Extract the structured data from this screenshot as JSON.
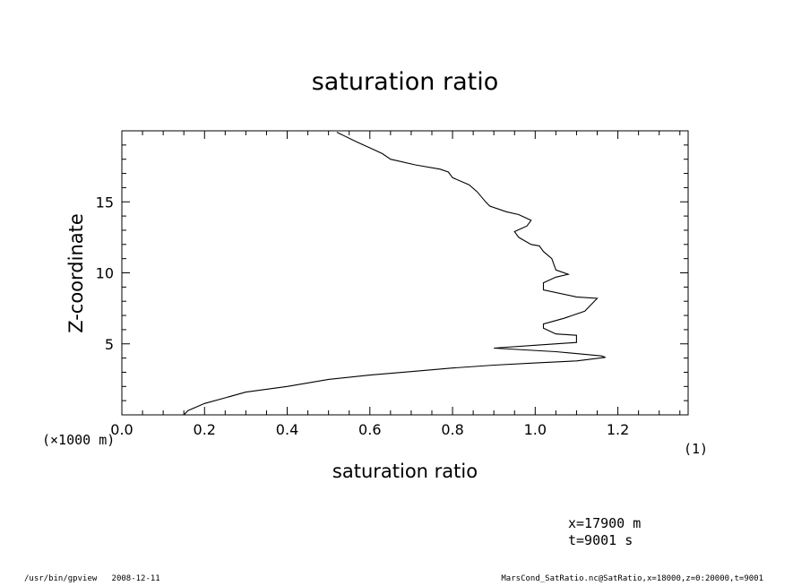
{
  "footer": {
    "left": "/usr/bin/gpview   2008-12-11",
    "right": "MarsCond_SatRatio.nc@SatRatio,x=18000,z=0:20000,t=9001"
  },
  "annotations": {
    "y_unit": "(×1000 m)",
    "x_unit": "(1)",
    "x_coord": "x=17900 m",
    "t_coord": "t=9001 s"
  },
  "chart_data": {
    "type": "line",
    "title": "saturation ratio",
    "xlabel": "saturation ratio",
    "ylabel": "Z-coordinate",
    "xlim": [
      0.0,
      1.37
    ],
    "ylim": [
      0,
      20
    ],
    "x_ticks": [
      0.0,
      0.2,
      0.4,
      0.6,
      0.8,
      1.0,
      1.2
    ],
    "x_tick_labels": [
      "0.0",
      "0.2",
      "0.4",
      "0.6",
      "0.8",
      "1.0",
      "1.2"
    ],
    "y_ticks": [
      5,
      10,
      15
    ],
    "y_tick_labels": [
      "5",
      "10",
      "15"
    ],
    "grid": false,
    "series": [
      {
        "points": [
          [
            0.15,
            0.0
          ],
          [
            0.16,
            0.3
          ],
          [
            0.2,
            0.8
          ],
          [
            0.25,
            1.2
          ],
          [
            0.3,
            1.6
          ],
          [
            0.4,
            2.0
          ],
          [
            0.5,
            2.5
          ],
          [
            0.6,
            2.8
          ],
          [
            0.7,
            3.05
          ],
          [
            0.8,
            3.3
          ],
          [
            0.9,
            3.5
          ],
          [
            1.0,
            3.65
          ],
          [
            1.1,
            3.8
          ],
          [
            1.17,
            4.05
          ],
          [
            1.16,
            4.15
          ],
          [
            1.05,
            4.45
          ],
          [
            0.9,
            4.7
          ],
          [
            1.0,
            4.9
          ],
          [
            1.1,
            5.1
          ],
          [
            1.1,
            5.6
          ],
          [
            1.05,
            5.7
          ],
          [
            1.02,
            6.1
          ],
          [
            1.02,
            6.4
          ],
          [
            1.07,
            6.8
          ],
          [
            1.12,
            7.3
          ],
          [
            1.15,
            8.2
          ],
          [
            1.1,
            8.3
          ],
          [
            1.02,
            8.8
          ],
          [
            1.02,
            9.3
          ],
          [
            1.05,
            9.7
          ],
          [
            1.08,
            9.9
          ],
          [
            1.05,
            10.2
          ],
          [
            1.04,
            11.0
          ],
          [
            1.02,
            11.5
          ],
          [
            1.01,
            11.9
          ],
          [
            0.99,
            12.0
          ],
          [
            0.96,
            12.5
          ],
          [
            0.95,
            12.9
          ],
          [
            0.98,
            13.3
          ],
          [
            0.99,
            13.7
          ],
          [
            0.96,
            14.1
          ],
          [
            0.93,
            14.3
          ],
          [
            0.89,
            14.7
          ],
          [
            0.88,
            15.0
          ],
          [
            0.86,
            15.7
          ],
          [
            0.84,
            16.2
          ],
          [
            0.8,
            16.7
          ],
          [
            0.79,
            17.1
          ],
          [
            0.77,
            17.3
          ],
          [
            0.71,
            17.6
          ],
          [
            0.65,
            18.0
          ],
          [
            0.63,
            18.4
          ],
          [
            0.6,
            18.8
          ],
          [
            0.57,
            19.2
          ],
          [
            0.52,
            19.9
          ]
        ]
      }
    ]
  }
}
